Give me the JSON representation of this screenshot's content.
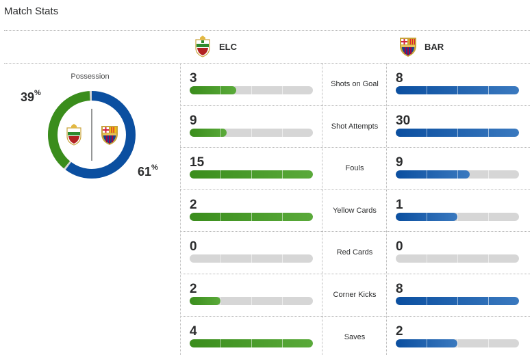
{
  "title": "Match Stats",
  "colors": {
    "home": "#3a8d1c",
    "home_light": "#5aaa3a",
    "away": "#0b4fa0",
    "away_light": "#3a79bf",
    "track": "#d6d6d6"
  },
  "home": {
    "abbr": "ELC",
    "crest_icon": "elche-crest-icon"
  },
  "away": {
    "abbr": "BAR",
    "crest_icon": "barcelona-crest-icon"
  },
  "possession": {
    "label": "Possession",
    "home_pct": 39,
    "away_pct": 61,
    "home_text": "39",
    "away_text": "61",
    "unit": "%"
  },
  "stats": [
    {
      "name": "Shots on Goal",
      "home": "3",
      "away": "8",
      "home_fill": 0.375,
      "away_fill": 1.0
    },
    {
      "name": "Shot Attempts",
      "home": "9",
      "away": "30",
      "home_fill": 0.3,
      "away_fill": 1.0
    },
    {
      "name": "Fouls",
      "home": "15",
      "away": "9",
      "home_fill": 1.0,
      "away_fill": 0.6
    },
    {
      "name": "Yellow Cards",
      "home": "2",
      "away": "1",
      "home_fill": 1.0,
      "away_fill": 0.5
    },
    {
      "name": "Red Cards",
      "home": "0",
      "away": "0",
      "home_fill": 0,
      "away_fill": 0
    },
    {
      "name": "Corner Kicks",
      "home": "2",
      "away": "8",
      "home_fill": 0.25,
      "away_fill": 1.0
    },
    {
      "name": "Saves",
      "home": "4",
      "away": "2",
      "home_fill": 1.0,
      "away_fill": 0.5
    }
  ]
}
